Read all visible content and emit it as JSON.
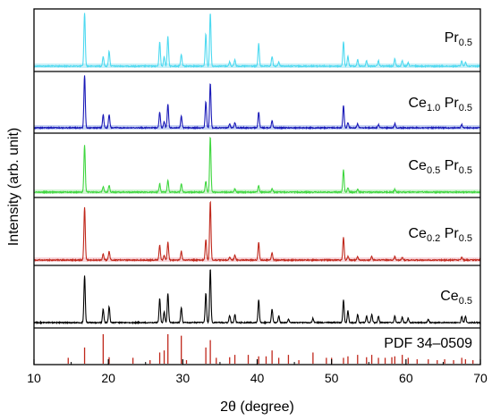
{
  "chart_data": {
    "type": "line",
    "title": "",
    "xlabel": "2θ (degree)",
    "ylabel": "Intensity (arb. unit)",
    "xlim": [
      10,
      70
    ],
    "xticks": [
      10,
      20,
      30,
      40,
      50,
      60,
      70
    ],
    "grid": false,
    "panel_order_top_to_bottom": [
      "Pr_0.5",
      "Ce_1.0 Pr_0.5",
      "Ce_0.5 Pr_0.5",
      "Ce_0.2 Pr_0.5",
      "Ce_0.5",
      "PDF 34-0509"
    ],
    "series": [
      {
        "label_parts": [
          {
            "t": "Pr"
          },
          {
            "t": "0.5",
            "sub": true
          }
        ],
        "color": "#4dd9f0",
        "band": "#c8f0f8",
        "peaks": [
          [
            16.8,
            1.0
          ],
          [
            19.3,
            0.18
          ],
          [
            20.1,
            0.28
          ],
          [
            26.9,
            0.45
          ],
          [
            27.5,
            0.18
          ],
          [
            28.0,
            0.55
          ],
          [
            29.8,
            0.22
          ],
          [
            33.1,
            0.6
          ],
          [
            33.7,
            1.0
          ],
          [
            36.3,
            0.08
          ],
          [
            37.0,
            0.12
          ],
          [
            40.2,
            0.42
          ],
          [
            42.0,
            0.18
          ],
          [
            42.9,
            0.08
          ],
          [
            51.6,
            0.45
          ],
          [
            52.2,
            0.18
          ],
          [
            53.5,
            0.12
          ],
          [
            54.7,
            0.1
          ],
          [
            56.3,
            0.1
          ],
          [
            58.5,
            0.14
          ],
          [
            59.5,
            0.1
          ],
          [
            60.3,
            0.06
          ],
          [
            67.5,
            0.1
          ],
          [
            68.0,
            0.08
          ]
        ]
      },
      {
        "label_parts": [
          {
            "t": "Ce"
          },
          {
            "t": "1.0",
            "sub": true
          },
          {
            "t": " Pr"
          },
          {
            "t": "0.5",
            "sub": true
          }
        ],
        "color": "#1a1ab8",
        "band": "#c7d3f3",
        "peaks": [
          [
            16.8,
            1.0
          ],
          [
            19.3,
            0.25
          ],
          [
            20.1,
            0.25
          ],
          [
            26.9,
            0.3
          ],
          [
            27.5,
            0.12
          ],
          [
            28.0,
            0.45
          ],
          [
            29.8,
            0.22
          ],
          [
            33.1,
            0.5
          ],
          [
            33.7,
            0.85
          ],
          [
            36.3,
            0.07
          ],
          [
            37.0,
            0.1
          ],
          [
            40.2,
            0.3
          ],
          [
            42.0,
            0.14
          ],
          [
            51.6,
            0.42
          ],
          [
            52.2,
            0.1
          ],
          [
            53.5,
            0.08
          ],
          [
            56.3,
            0.06
          ],
          [
            58.5,
            0.08
          ],
          [
            67.5,
            0.06
          ]
        ]
      },
      {
        "label_parts": [
          {
            "t": "Ce"
          },
          {
            "t": "0.5",
            "sub": true
          },
          {
            "t": " Pr"
          },
          {
            "t": "0.5",
            "sub": true
          }
        ],
        "color": "#3ed63e",
        "band": "#d2f3d2",
        "peaks": [
          [
            16.8,
            0.85
          ],
          [
            19.3,
            0.1
          ],
          [
            20.1,
            0.12
          ],
          [
            26.9,
            0.15
          ],
          [
            28.0,
            0.22
          ],
          [
            29.8,
            0.15
          ],
          [
            33.1,
            0.2
          ],
          [
            33.7,
            1.0
          ],
          [
            37.0,
            0.06
          ],
          [
            40.2,
            0.12
          ],
          [
            42.0,
            0.06
          ],
          [
            51.6,
            0.4
          ],
          [
            52.2,
            0.08
          ],
          [
            53.5,
            0.05
          ],
          [
            58.5,
            0.05
          ]
        ]
      },
      {
        "label_parts": [
          {
            "t": "Ce"
          },
          {
            "t": "0.2",
            "sub": true
          },
          {
            "t": " Pr"
          },
          {
            "t": "0.5",
            "sub": true
          }
        ],
        "color": "#c0281c",
        "band": "#f7d6dc",
        "peaks": [
          [
            16.8,
            0.9
          ],
          [
            19.3,
            0.1
          ],
          [
            20.1,
            0.15
          ],
          [
            26.9,
            0.25
          ],
          [
            27.5,
            0.08
          ],
          [
            28.0,
            0.3
          ],
          [
            29.8,
            0.15
          ],
          [
            33.1,
            0.35
          ],
          [
            33.7,
            1.0
          ],
          [
            36.3,
            0.05
          ],
          [
            37.0,
            0.08
          ],
          [
            40.2,
            0.3
          ],
          [
            42.0,
            0.12
          ],
          [
            51.6,
            0.38
          ],
          [
            52.2,
            0.06
          ],
          [
            53.5,
            0.06
          ],
          [
            55.4,
            0.06
          ],
          [
            58.5,
            0.06
          ],
          [
            59.5,
            0.05
          ],
          [
            67.5,
            0.05
          ]
        ]
      },
      {
        "label_parts": [
          {
            "t": "Ce"
          },
          {
            "t": "0.5",
            "sub": true
          }
        ],
        "color": "#000000",
        "band": "",
        "peaks": [
          [
            16.8,
            0.88
          ],
          [
            19.3,
            0.25
          ],
          [
            20.1,
            0.3
          ],
          [
            26.9,
            0.45
          ],
          [
            27.5,
            0.2
          ],
          [
            28.0,
            0.55
          ],
          [
            29.8,
            0.28
          ],
          [
            33.1,
            0.55
          ],
          [
            33.7,
            1.0
          ],
          [
            36.3,
            0.13
          ],
          [
            37.0,
            0.15
          ],
          [
            40.2,
            0.42
          ],
          [
            42.0,
            0.25
          ],
          [
            42.9,
            0.12
          ],
          [
            44.2,
            0.06
          ],
          [
            47.5,
            0.08
          ],
          [
            51.6,
            0.42
          ],
          [
            52.2,
            0.22
          ],
          [
            53.5,
            0.15
          ],
          [
            54.7,
            0.12
          ],
          [
            55.4,
            0.15
          ],
          [
            56.3,
            0.12
          ],
          [
            58.5,
            0.12
          ],
          [
            59.5,
            0.1
          ],
          [
            60.3,
            0.08
          ],
          [
            63.0,
            0.06
          ],
          [
            67.5,
            0.12
          ],
          [
            68.0,
            0.12
          ]
        ]
      },
      {
        "label_parts": [
          {
            "t": "PDF 34–0509"
          }
        ],
        "color": "#c0281c",
        "band": "",
        "type": "sticks",
        "peaks": [
          [
            14.6,
            0.2
          ],
          [
            16.8,
            0.55
          ],
          [
            19.3,
            1.0
          ],
          [
            20.1,
            0.22
          ],
          [
            23.3,
            0.2
          ],
          [
            25.6,
            0.12
          ],
          [
            26.9,
            0.38
          ],
          [
            27.5,
            0.45
          ],
          [
            28.0,
            1.0
          ],
          [
            29.8,
            0.95
          ],
          [
            30.5,
            0.12
          ],
          [
            33.1,
            0.55
          ],
          [
            33.7,
            0.8
          ],
          [
            34.5,
            0.2
          ],
          [
            36.3,
            0.22
          ],
          [
            37.0,
            0.3
          ],
          [
            38.8,
            0.3
          ],
          [
            40.2,
            0.25
          ],
          [
            41.2,
            0.25
          ],
          [
            42.0,
            0.45
          ],
          [
            42.9,
            0.2
          ],
          [
            44.2,
            0.3
          ],
          [
            45.6,
            0.12
          ],
          [
            47.5,
            0.38
          ],
          [
            49.3,
            0.2
          ],
          [
            50.0,
            0.2
          ],
          [
            51.6,
            0.2
          ],
          [
            52.2,
            0.25
          ],
          [
            53.5,
            0.3
          ],
          [
            54.7,
            0.22
          ],
          [
            55.4,
            0.3
          ],
          [
            56.3,
            0.2
          ],
          [
            57.2,
            0.2
          ],
          [
            58.1,
            0.22
          ],
          [
            58.5,
            0.25
          ],
          [
            59.5,
            0.3
          ],
          [
            60.3,
            0.2
          ],
          [
            61.5,
            0.15
          ],
          [
            63.0,
            0.15
          ],
          [
            64.2,
            0.12
          ],
          [
            65.2,
            0.15
          ],
          [
            66.4,
            0.12
          ],
          [
            67.5,
            0.2
          ],
          [
            68.0,
            0.15
          ],
          [
            69.0,
            0.12
          ]
        ]
      }
    ]
  }
}
